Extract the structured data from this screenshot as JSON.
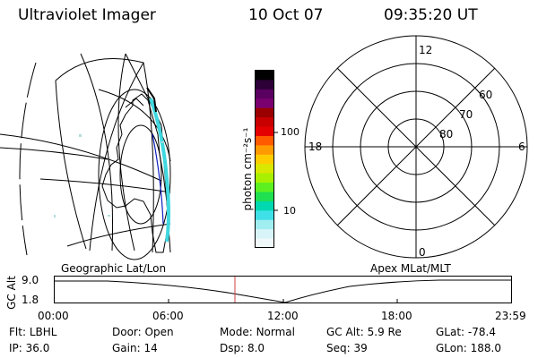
{
  "header": {
    "title": "Ultraviolet Imager",
    "date": "10 Oct 07",
    "time": "09:35:20 UT"
  },
  "colorbar": {
    "unit_label": "photon cm⁻²s⁻¹",
    "tick_100": "100",
    "tick_10": "10",
    "colors": [
      "#000000",
      "#2d0038",
      "#5a0060",
      "#7a0070",
      "#9a0000",
      "#c80000",
      "#e40000",
      "#ff5a00",
      "#ff9a00",
      "#ffcc00",
      "#d9e800",
      "#a8f000",
      "#5cf020",
      "#1ee050",
      "#00d8b0",
      "#40e0e8",
      "#a0eef0",
      "#d8f4f8",
      "#f0f8fa"
    ]
  },
  "polar_plot": {
    "mlt_labels": {
      "top": "12",
      "left": "18",
      "right": "6",
      "bottom": "0"
    },
    "lat_labels": [
      "60",
      "70",
      "80"
    ]
  },
  "lower_panel": {
    "label_left": "Geographic Lat/Lon",
    "label_right": "Apex MLat/MLT",
    "y_axis_label": "GC Alt",
    "y_ticks": [
      "9.0",
      "1.8"
    ],
    "x_ticks": [
      "00:00",
      "06:00",
      "12:00",
      "18:00",
      "23:59"
    ],
    "marker_color": "#d04040"
  },
  "status": {
    "row1": [
      {
        "key": "Flt:",
        "value": "LBHL"
      },
      {
        "key": "Door:",
        "value": "Open"
      },
      {
        "key": "Mode:",
        "value": "Normal"
      },
      {
        "key": "GC Alt:",
        "value": "5.9 Re"
      },
      {
        "key": "GLat:",
        "value": "-78.4"
      }
    ],
    "row2": [
      {
        "key": "IP:",
        "value": "36.0"
      },
      {
        "key": "Gain:",
        "value": "14"
      },
      {
        "key": "Dsp:",
        "value": "8.0"
      },
      {
        "key": "Seq:",
        "value": "39"
      },
      {
        "key": "GLon:",
        "value": "188.0"
      }
    ]
  }
}
